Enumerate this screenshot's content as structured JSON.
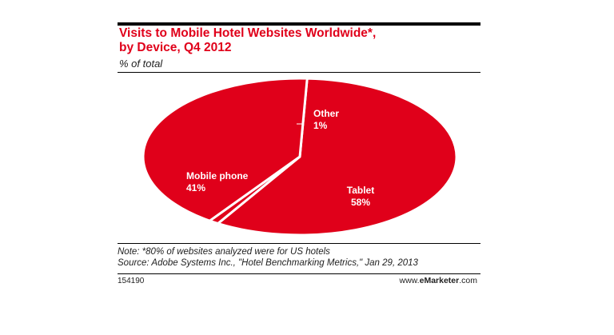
{
  "header": {
    "title_line1": "Visits to Mobile Hotel Websites Worldwide*,",
    "title_line2": "by Device, Q4 2012",
    "subtitle": "% of total"
  },
  "chart_data": {
    "type": "pie",
    "title": "Visits to Mobile Hotel Websites Worldwide*, by Device, Q4 2012",
    "unit": "% of total",
    "slices": [
      {
        "label": "Tablet",
        "value": 58,
        "value_label": "58%"
      },
      {
        "label": "Other",
        "value": 1,
        "value_label": "1%"
      },
      {
        "label": "Mobile phone",
        "value": 41,
        "value_label": "41%"
      }
    ],
    "colors": {
      "fill": "#e0001a",
      "edge": "#ffffff"
    }
  },
  "footer": {
    "note": "Note: *80% of websites analyzed were for US hotels",
    "source": "Source: Adobe Systems Inc., \"Hotel Benchmarking Metrics,\" Jan 29, 2013",
    "chart_id": "154190",
    "brand_prefix": "www.",
    "brand_bold": "eMarketer",
    "brand_suffix": ".com"
  }
}
